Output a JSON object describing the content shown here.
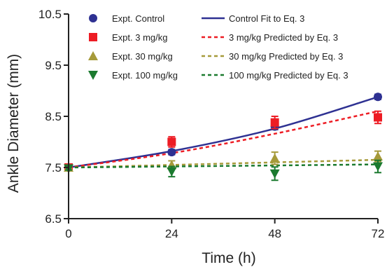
{
  "chart_data": {
    "type": "scatter",
    "xlabel": "Time (h)",
    "ylabel": "Ankle Diameter (mm)",
    "xlim": [
      0,
      72
    ],
    "ylim": [
      6.5,
      10.5
    ],
    "xticks": [
      "0",
      "24",
      "48",
      "72"
    ],
    "yticks": [
      "6.5",
      "7.5",
      "8.5",
      "9.5",
      "10.5"
    ],
    "grid": false,
    "legend_position": "top-right",
    "x": [
      0,
      24,
      48,
      72
    ],
    "series": [
      {
        "name": "Expt. Control",
        "marker": "circle",
        "color": "#2e3192",
        "values": [
          7.5,
          7.8,
          8.3,
          8.88
        ],
        "errors": [
          0.03,
          0.05,
          0.06,
          0.05
        ]
      },
      {
        "name": "Expt. 3 mg/kg",
        "marker": "square",
        "color": "#ed1c24",
        "values": [
          7.5,
          8.0,
          8.38,
          8.48
        ],
        "errors": [
          0.04,
          0.1,
          0.12,
          0.12
        ]
      },
      {
        "name": "Expt. 30 mg/kg",
        "marker": "triangle-up",
        "color": "#a69a3a",
        "values": [
          7.5,
          7.55,
          7.68,
          7.72
        ],
        "errors": [
          0.03,
          0.08,
          0.12,
          0.1
        ]
      },
      {
        "name": "Expt. 100 mg/kg",
        "marker": "triangle-down",
        "color": "#1b7a2f",
        "values": [
          7.48,
          7.42,
          7.38,
          7.52
        ],
        "errors": [
          0.03,
          0.1,
          0.13,
          0.12
        ]
      }
    ],
    "fits": [
      {
        "name": "Control Fit to Eq. 3",
        "style": "solid",
        "color": "#2e3192",
        "values": [
          7.5,
          7.82,
          8.26,
          8.88
        ]
      },
      {
        "name": "3 mg/kg Predicted by Eq. 3",
        "style": "dashed",
        "color": "#ed1c24",
        "values": [
          7.5,
          7.78,
          8.16,
          8.6
        ]
      },
      {
        "name": "30 mg/kg Predicted by Eq. 3",
        "style": "dashed",
        "color": "#a69a3a",
        "values": [
          7.5,
          7.55,
          7.6,
          7.65
        ]
      },
      {
        "name": "100 mg/kg Predicted by Eq. 3",
        "style": "dashed",
        "color": "#1b7a2f",
        "values": [
          7.5,
          7.52,
          7.54,
          7.56
        ]
      }
    ]
  }
}
